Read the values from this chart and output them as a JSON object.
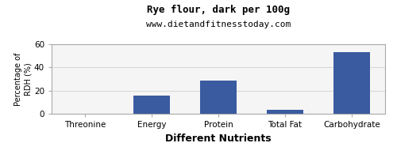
{
  "title": "Rye flour, dark per 100g",
  "subtitle": "www.dietandfitnesstoday.com",
  "xlabel": "Different Nutrients",
  "ylabel": "Percentage of\nRDH (%)",
  "categories": [
    "Threonine",
    "Energy",
    "Protein",
    "Total Fat",
    "Carbohydrate"
  ],
  "values": [
    0,
    16,
    28.5,
    3.5,
    53
  ],
  "bar_color": "#3a5ba0",
  "ylim": [
    0,
    60
  ],
  "yticks": [
    0,
    20,
    40,
    60
  ],
  "background_color": "#ffffff",
  "plot_bg_color": "#f5f5f5",
  "grid_color": "#d8d8d8",
  "title_fontsize": 9,
  "subtitle_fontsize": 8,
  "xlabel_fontsize": 9,
  "ylabel_fontsize": 7,
  "tick_fontsize": 7.5
}
